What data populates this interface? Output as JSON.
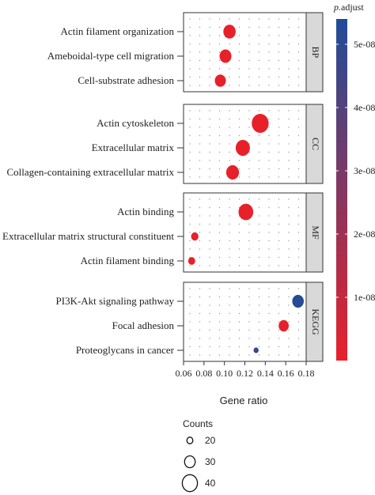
{
  "chart_data": {
    "type": "scatter",
    "xlabel": "Gene ratio",
    "xlim": [
      0.06,
      0.18
    ],
    "xticks": [
      "0.06",
      "0.08",
      "0.10",
      "0.12",
      "0.14",
      "0.16",
      "0.18"
    ],
    "grid": true,
    "color_legend": {
      "title_prefix": "p.",
      "title_suffix": "adjust",
      "range": [
        0,
        5.4e-08
      ],
      "ticks": [
        {
          "value": 1e-08,
          "label": "1e-08"
        },
        {
          "value": 2e-08,
          "label": "2e-08"
        },
        {
          "value": 3e-08,
          "label": "3e-08"
        },
        {
          "value": 4e-08,
          "label": "4e-08"
        },
        {
          "value": 5e-08,
          "label": "5e-08"
        }
      ],
      "low_color": "#e8212a",
      "high_color": "#1f4d99"
    },
    "size_legend": {
      "title": "Counts",
      "entries": [
        {
          "value": 20,
          "label": "20"
        },
        {
          "value": 30,
          "label": "30"
        },
        {
          "value": 40,
          "label": "40"
        }
      ]
    },
    "panels": [
      {
        "facet": "BP",
        "terms": [
          {
            "term": "Actin filament organization",
            "gene_ratio": 0.105,
            "p_adjust": 2e-10,
            "count": 34
          },
          {
            "term": "Ameboidal-type cell migration",
            "gene_ratio": 0.101,
            "p_adjust": 2e-10,
            "count": 33
          },
          {
            "term": "Cell-substrate adhesion",
            "gene_ratio": 0.096,
            "p_adjust": 2e-10,
            "count": 31
          }
        ]
      },
      {
        "facet": "CC",
        "terms": [
          {
            "term": "Actin cytoskeleton",
            "gene_ratio": 0.135,
            "p_adjust": 2e-10,
            "count": 44
          },
          {
            "term": "Extracellular matrix",
            "gene_ratio": 0.118,
            "p_adjust": 2e-10,
            "count": 38
          },
          {
            "term": "Collagen-containing extracellular matrix",
            "gene_ratio": 0.108,
            "p_adjust": 2e-10,
            "count": 35
          }
        ]
      },
      {
        "facet": "MF",
        "terms": [
          {
            "term": "Actin binding",
            "gene_ratio": 0.121,
            "p_adjust": 2e-10,
            "count": 39
          },
          {
            "term": "Extracellular matrix structural constituent",
            "gene_ratio": 0.071,
            "p_adjust": 2e-10,
            "count": 23
          },
          {
            "term": "Actin filament binding",
            "gene_ratio": 0.068,
            "p_adjust": 2e-10,
            "count": 22
          }
        ]
      },
      {
        "facet": "KEGG",
        "terms": [
          {
            "term": "PI3K-Akt signaling pathway",
            "gene_ratio": 0.172,
            "p_adjust": 5.2e-08,
            "count": 32
          },
          {
            "term": "Focal adhesion",
            "gene_ratio": 0.158,
            "p_adjust": 1e-09,
            "count": 29
          },
          {
            "term": "Proteoglycans in cancer",
            "gene_ratio": 0.131,
            "p_adjust": 4.8e-08,
            "count": 18
          }
        ]
      }
    ]
  }
}
